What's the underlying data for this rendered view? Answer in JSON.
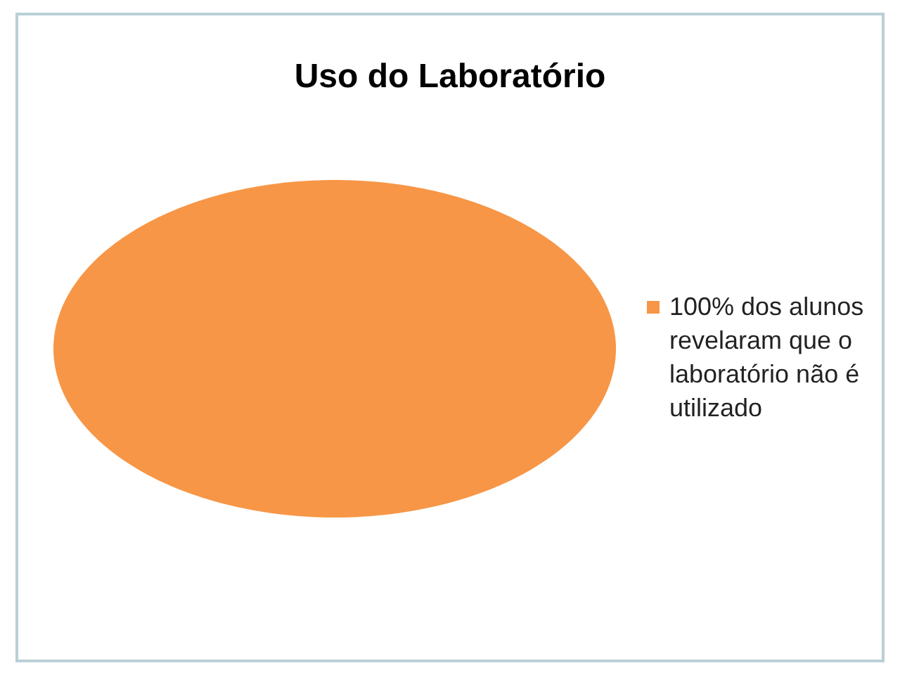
{
  "chart_data": {
    "type": "pie",
    "title": "Uso do Laboratório",
    "categories": [
      "100% dos alunos revelaram que o laboratório não é utilizado"
    ],
    "values": [
      100
    ],
    "colors": [
      "#f79646"
    ],
    "legend": "right"
  }
}
